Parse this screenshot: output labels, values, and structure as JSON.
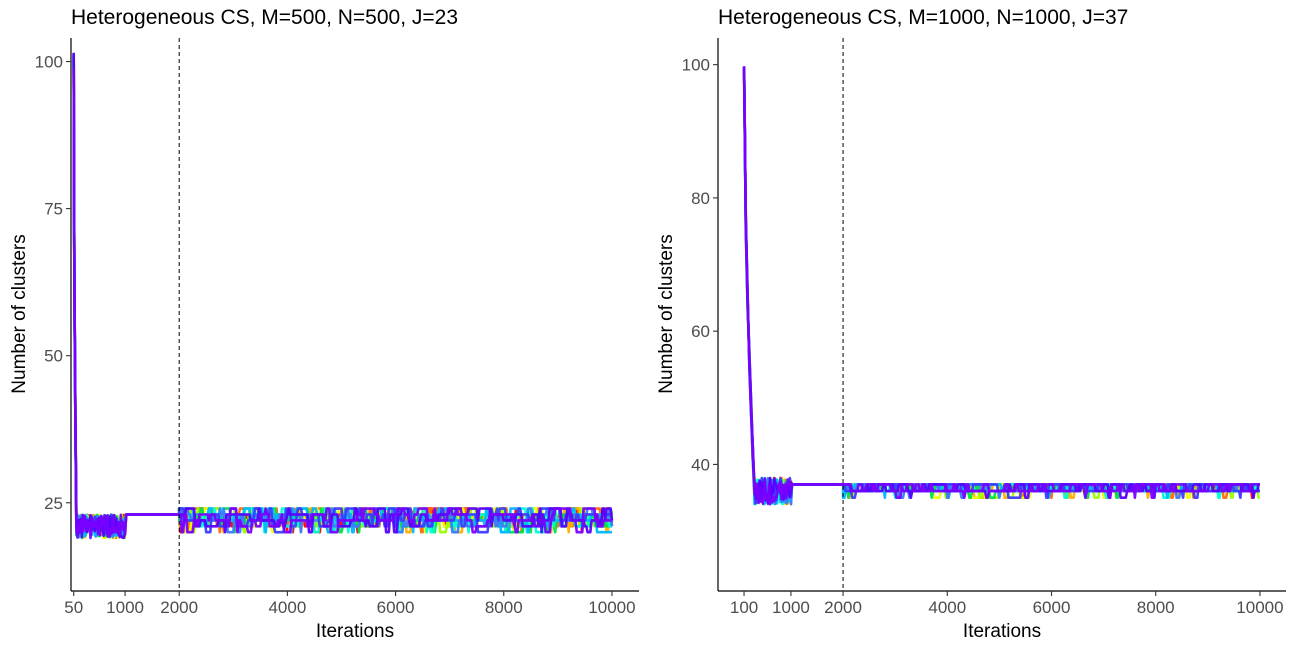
{
  "chart_data": [
    {
      "type": "line",
      "title": "Heterogeneous CS, M=500, N=500, J=23",
      "xlabel": "Iterations",
      "ylabel": "Number of clusters",
      "x_ticks": [
        50,
        1000,
        2000,
        4000,
        6000,
        8000,
        10000
      ],
      "y_ticks": [
        25,
        50,
        75,
        100
      ],
      "xlim": [
        0,
        10500
      ],
      "ylim": [
        10,
        104
      ],
      "burn_in": 2000,
      "grid": false,
      "n_traces": 12,
      "trace_shape": {
        "start_x": 50,
        "start_value": 100,
        "drop_end_x": 100,
        "low_value": 21,
        "low_end_x": 1000,
        "plateau_value": 23,
        "post_burnin_band": [
          21,
          24
        ]
      }
    },
    {
      "type": "line",
      "title": "Heterogeneous CS, M=1000, N=1000, J=37",
      "xlabel": "Iterations",
      "ylabel": "Number of clusters",
      "x_ticks": [
        100,
        1000,
        2000,
        4000,
        6000,
        8000,
        10000
      ],
      "y_ticks": [
        40,
        60,
        80,
        100
      ],
      "xlim": [
        -400,
        10500
      ],
      "ylim": [
        21,
        104
      ],
      "burn_in": 2000,
      "grid": false,
      "n_traces": 12,
      "trace_shape": {
        "start_x": 100,
        "start_value": 100,
        "drop_end_x": 300,
        "low_value": 36,
        "low_end_x": 1000,
        "plateau_value": 37,
        "post_burnin_band": [
          36,
          37
        ]
      }
    }
  ],
  "palette": [
    "#ff0000",
    "#ff6a00",
    "#ffae00",
    "#f2ff00",
    "#9dff00",
    "#00e14b",
    "#00ffd5",
    "#00b7ff",
    "#3b7bff",
    "#3c3cff",
    "#5a00ff",
    "#7a00ff"
  ]
}
